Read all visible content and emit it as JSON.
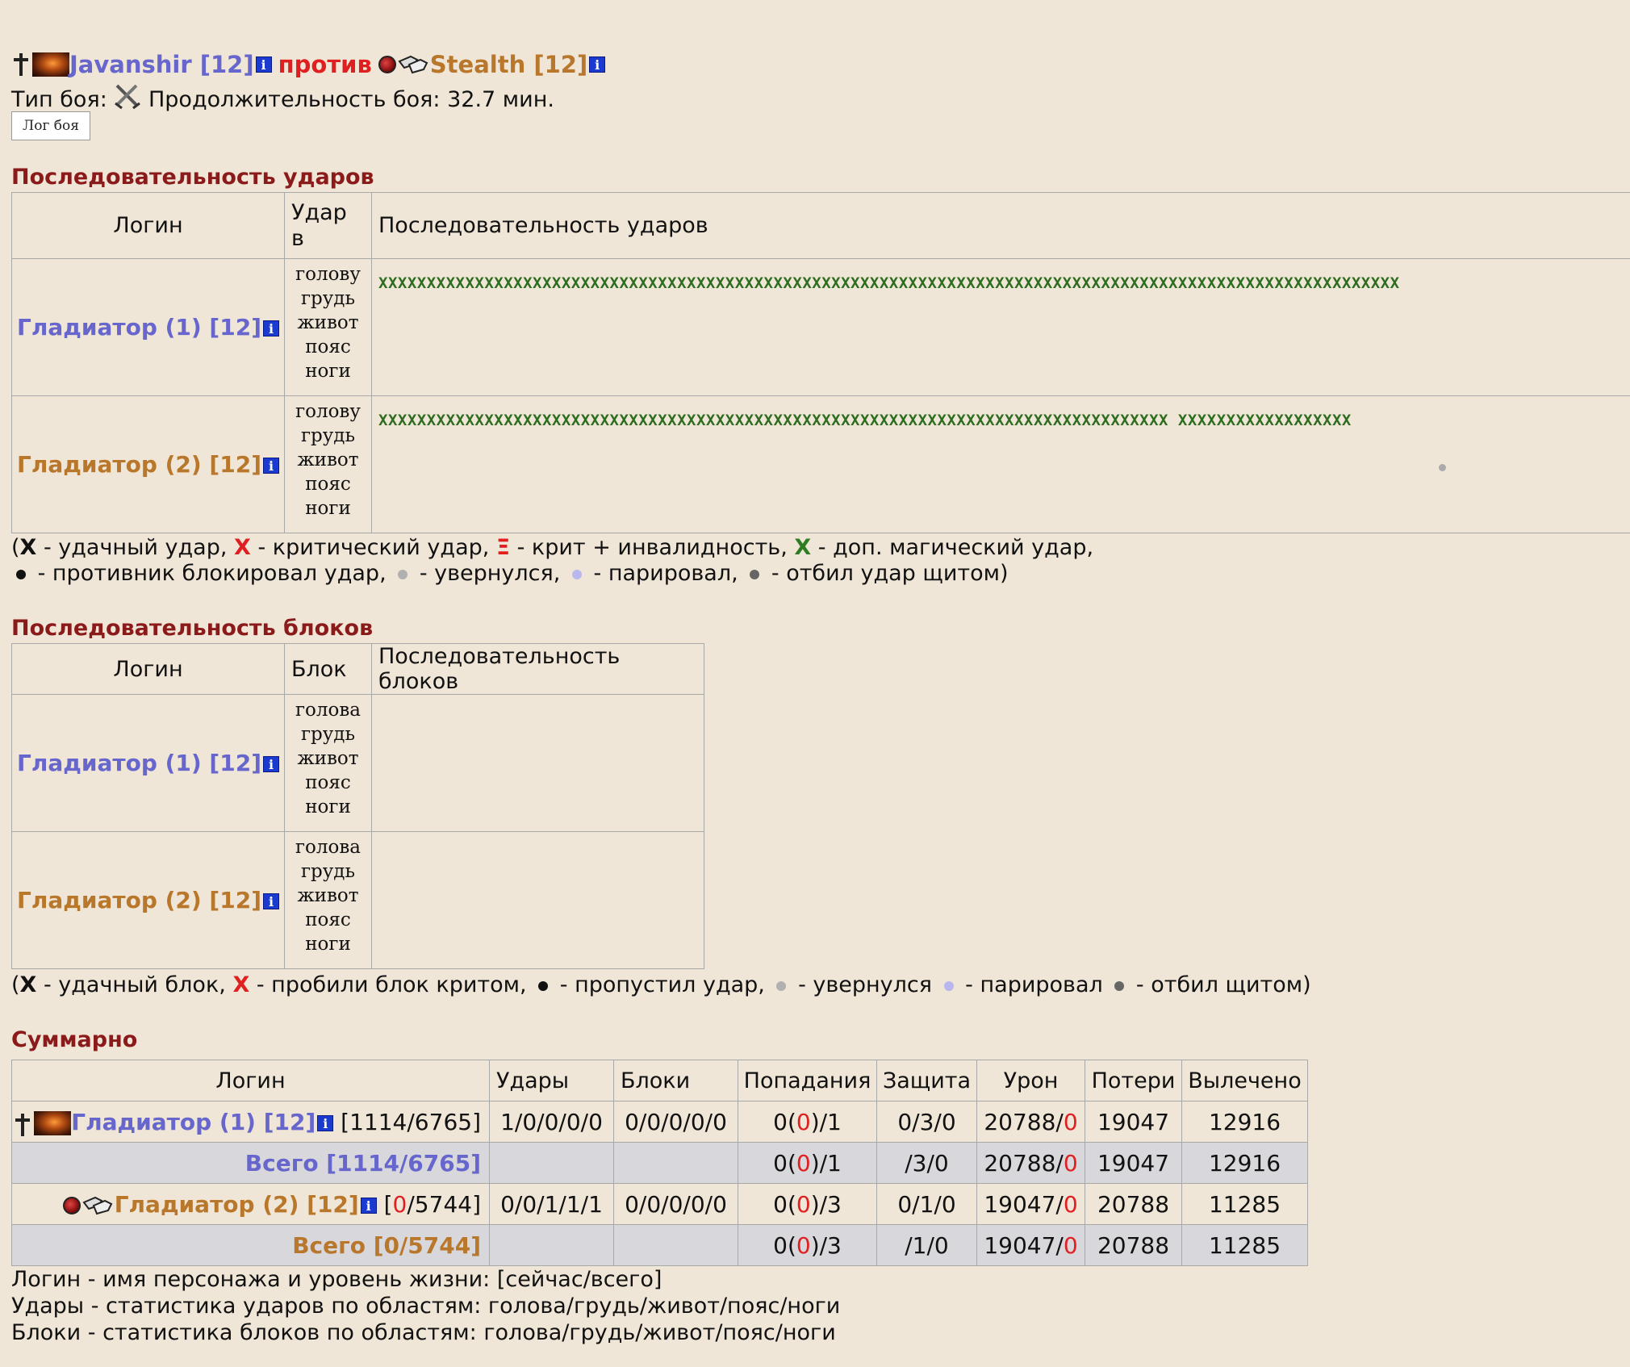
{
  "header": {
    "player1_name": "Javanshir [12]",
    "vs_label": "против",
    "player2_name": "Stealth [12]",
    "fight_type_label": "Тип боя:",
    "duration_text": "Продолжительность боя: 32.7 мин.",
    "log_button_label": "Лог боя"
  },
  "hits_section": {
    "title": "Последовательность ударов",
    "columns": [
      "Логин",
      "Удар в",
      "Последовательность ударов"
    ],
    "rows": [
      {
        "login": "Гладиатор (1) [12]",
        "areas": [
          "голову",
          "грудь",
          "живот",
          "пояс",
          "ноги"
        ],
        "sequence": "XXXXXXXXXXXXXXXXXXXXXXXXXXXXXXXXXXXXXXXXXXXXXXXXXXXXXXXXXXXXXXXXXXXXXXXXXXXXXXXXXXXXXXXXXXXXXXXXXXXXXXXXXX"
      },
      {
        "login": "Гладиатор (2) [12]",
        "areas": [
          "голову",
          "грудь",
          "живот",
          "пояс",
          "ноги"
        ],
        "sequence": "XXXXXXXXXXXXXXXXXXXXXXXXXXXXXXXXXXXXXXXXXXXXXXXXXXXXXXXXXXXXXXXXXXXXXXXXXXXXXXXXXX XXXXXXXXXXXXXXXXXX"
      }
    ],
    "legend_line1": {
      "x_bold": "X",
      "t1": " - удачный удар, ",
      "x_red": "X",
      "t2": " - критический удар, ",
      "xi_red": "Ξ",
      "t3": " - крит + инвалидность, ",
      "x_green": "X",
      "t4": " - доп. магический удар,"
    },
    "legend_line2": {
      "t1": " - противник блокировал удар, ",
      "t2": " - увернулся, ",
      "t3": " - парировал, ",
      "t4": " - отбил удар щитом)"
    }
  },
  "blocks_section": {
    "title": "Последовательность блоков",
    "columns": [
      "Логин",
      "Блок",
      "Последовательность блоков"
    ],
    "rows": [
      {
        "login": "Гладиатор (1) [12]",
        "areas": [
          "голова",
          "грудь",
          "живот",
          "пояс",
          "ноги"
        ]
      },
      {
        "login": "Гладиатор (2) [12]",
        "areas": [
          "голова",
          "грудь",
          "живот",
          "пояс",
          "ноги"
        ]
      }
    ],
    "legend": {
      "x_bold": "X",
      "t1": " - удачный блок, ",
      "x_red": "X",
      "t2": " - пробили блок критом, ",
      "t3": " - пропустил удар, ",
      "t4": " - увернулся ",
      "t5": " - парировал ",
      "t6": " - отбил щитом)"
    }
  },
  "summary_section": {
    "title": "Суммарно",
    "columns": [
      "Логин",
      "Удары",
      "Блоки",
      "Попадания",
      "Защита",
      "Урон",
      "Потери",
      "Вылечено"
    ],
    "rows": [
      {
        "login": "Гладиатор (1) [12]",
        "hp_open": " [",
        "hp_now": "1114",
        "hp_rest": "/6765]",
        "hits": "1/0/0/0/0",
        "blocks": "0/0/0/0/0",
        "hit_a": "0(",
        "hit_b": "0",
        "hit_c": ")/1",
        "defense": "0/3/0",
        "damage_a": "20788/",
        "damage_b": "0",
        "losses": "19047",
        "healed": "12916"
      },
      {
        "total_label": "Всего [1114/6765]",
        "hit_a": "0(",
        "hit_b": "0",
        "hit_c": ")/1",
        "defense": "/3/0",
        "damage_a": "20788/",
        "damage_b": "0",
        "losses": "19047",
        "healed": "12916"
      },
      {
        "login": "Гладиатор (2) [12]",
        "hp_open": " [",
        "hp_now": "0",
        "hp_rest": "/5744]",
        "hits": "0/0/1/1/1",
        "blocks": "0/0/0/0/0",
        "hit_a": "0(",
        "hit_b": "0",
        "hit_c": ")/3",
        "defense": "0/1/0",
        "damage_a": "19047/",
        "damage_b": "0",
        "losses": "20788",
        "healed": "11285"
      },
      {
        "total_label": "Всего [0/5744]",
        "hit_a": "0(",
        "hit_b": "0",
        "hit_c": ")/3",
        "defense": "/1/0",
        "damage_a": "19047/",
        "damage_b": "0",
        "losses": "20788",
        "healed": "11285"
      }
    ]
  },
  "notes": [
    "Логин - имя персонажа и уровень жизни: [сейчас/всего]",
    "Удары - статистика ударов по областям: голова/грудь/живот/пояс/ноги",
    "Блоки - статистика блоков по областям: голова/грудь/живот/пояс/ноги"
  ],
  "colors": {
    "background": "#f0e6d7",
    "team1": "#6666cc",
    "team2": "#b8772a",
    "section_title": "#8b1a1a",
    "vs": "#e02020",
    "hit_sequence": "#2d6d1f",
    "total_row": "#d8d8dc"
  },
  "icons": [
    "cross-icon",
    "fire-avatar-icon",
    "info-icon",
    "shield-icon",
    "gloves-icon",
    "swords-icon"
  ]
}
